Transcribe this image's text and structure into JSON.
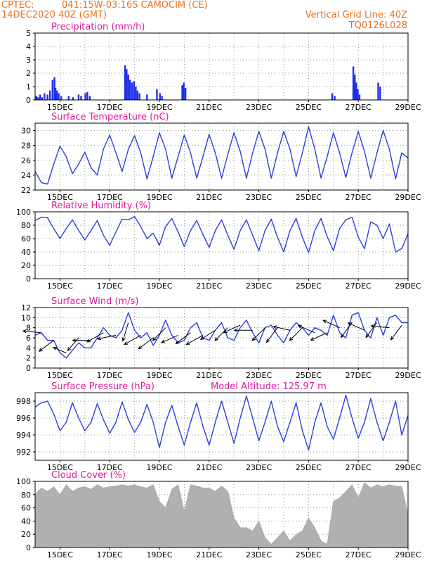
{
  "header": {
    "source": "CPTEC:",
    "location": "041:15W-03:16S   CAMOCIM (CE)",
    "run": "14DEC2020 40Z (GMT)",
    "grid_line": "Vertical Grid Line: 40Z",
    "code": "TQ0126L028"
  },
  "date_labels": [
    "15DEC",
    "17DEC",
    "19DEC",
    "21DEC",
    "23DEC",
    "25DEC",
    "27DEC",
    "29DEC"
  ],
  "colors": {
    "header": "#e8701a",
    "panel_title": "#e0189c",
    "line": "#2b3fe0",
    "bar": "#1f2ee8",
    "cloud": "#b0b0b0",
    "grid": "#9a9a9a"
  },
  "chart_data": [
    {
      "type": "bar",
      "title": "Precipitation (mm/h)",
      "unit": "mm/h",
      "ylim": [
        0,
        5
      ],
      "yticks": [
        0,
        1,
        2,
        3,
        4,
        5
      ],
      "xlim": [
        0,
        15
      ],
      "x": [
        0.05,
        0.12,
        0.2,
        0.28,
        0.38,
        0.5,
        0.6,
        0.7,
        0.78,
        0.82,
        0.88,
        0.95,
        1.05,
        1.35,
        1.52,
        1.75,
        1.85,
        2.02,
        2.1,
        2.2,
        3.62,
        3.68,
        3.75,
        3.82,
        3.9,
        3.98,
        4.05,
        4.12,
        4.2,
        4.5,
        4.9,
        5.02,
        5.1,
        5.92,
        5.98,
        6.05,
        11.95,
        12.05,
        12.8,
        12.86,
        12.92,
        12.98,
        13.05,
        13.8,
        13.88
      ],
      "values": [
        0.3,
        0.2,
        0.4,
        0.2,
        0.5,
        0.4,
        0.7,
        1.5,
        1.7,
        0.9,
        0.7,
        0.5,
        0.3,
        0.3,
        0.2,
        0.4,
        0.3,
        0.5,
        0.6,
        0.3,
        2.6,
        2.3,
        1.9,
        1.5,
        1.3,
        1.4,
        1.0,
        0.7,
        0.5,
        0.4,
        0.8,
        0.5,
        0.3,
        1.1,
        1.3,
        0.9,
        0.5,
        0.3,
        2.5,
        1.9,
        1.3,
        0.8,
        0.4,
        1.3,
        1.0
      ]
    },
    {
      "type": "line",
      "title": "Surface Temperature (nC)",
      "unit": "nC",
      "ylim": [
        22,
        31
      ],
      "yticks": [
        22,
        24,
        26,
        28,
        30
      ],
      "xlim": [
        0,
        15
      ],
      "x": [
        0.0,
        0.25,
        0.5,
        0.75,
        1.0,
        1.25,
        1.5,
        1.75,
        2.0,
        2.25,
        2.5,
        2.75,
        3.0,
        3.25,
        3.5,
        3.75,
        4.0,
        4.25,
        4.5,
        4.75,
        5.0,
        5.25,
        5.5,
        5.75,
        6.0,
        6.25,
        6.5,
        6.75,
        7.0,
        7.25,
        7.5,
        7.75,
        8.0,
        8.25,
        8.5,
        8.75,
        9.0,
        9.25,
        9.5,
        9.75,
        10.0,
        10.25,
        10.5,
        10.75,
        11.0,
        11.25,
        11.5,
        11.75,
        12.0,
        12.25,
        12.5,
        12.75,
        13.0,
        13.25,
        13.5,
        13.75,
        14.0,
        14.25,
        14.5,
        14.75,
        15.0
      ],
      "values": [
        24.5,
        23.0,
        22.8,
        25.5,
        27.9,
        26.5,
        24.2,
        25.5,
        27.1,
        25.0,
        24.0,
        27.5,
        29.4,
        27.0,
        24.5,
        27.5,
        29.3,
        27.0,
        23.5,
        26.5,
        29.7,
        27.5,
        23.6,
        26.5,
        29.4,
        27.0,
        23.6,
        26.5,
        29.5,
        27.0,
        23.6,
        26.8,
        29.7,
        27.2,
        23.6,
        27.0,
        29.9,
        27.5,
        23.6,
        27.0,
        29.9,
        27.5,
        23.8,
        27.0,
        30.5,
        27.5,
        23.6,
        26.5,
        29.7,
        27.0,
        23.7,
        27.0,
        29.9,
        27.2,
        23.6,
        27.0,
        30.0,
        27.5,
        23.5,
        27.0,
        26.3
      ]
    },
    {
      "type": "line",
      "title": "Relative Humidity (%)",
      "unit": "%",
      "ylim": [
        0,
        100
      ],
      "yticks": [
        0,
        20,
        40,
        60,
        80,
        100
      ],
      "xlim": [
        0,
        15
      ],
      "x": [
        0.0,
        0.25,
        0.5,
        0.75,
        1.0,
        1.25,
        1.5,
        1.75,
        2.0,
        2.25,
        2.5,
        2.75,
        3.0,
        3.25,
        3.5,
        3.75,
        4.0,
        4.25,
        4.5,
        4.75,
        5.0,
        5.25,
        5.5,
        5.75,
        6.0,
        6.25,
        6.5,
        6.75,
        7.0,
        7.25,
        7.5,
        7.75,
        8.0,
        8.25,
        8.5,
        8.75,
        9.0,
        9.25,
        9.5,
        9.75,
        10.0,
        10.25,
        10.5,
        10.75,
        11.0,
        11.25,
        11.5,
        11.75,
        12.0,
        12.25,
        12.5,
        12.75,
        13.0,
        13.25,
        13.5,
        13.75,
        14.0,
        14.25,
        14.5,
        14.75,
        15.0
      ],
      "values": [
        87.0,
        92.0,
        91.0,
        75.0,
        60.0,
        75.0,
        88.0,
        72.0,
        58.0,
        72.0,
        87.0,
        65.0,
        50.0,
        70.0,
        89.0,
        88.0,
        93.0,
        78.0,
        60.0,
        68.0,
        50.0,
        78.0,
        90.0,
        70.0,
        48.0,
        72.0,
        87.0,
        66.0,
        47.0,
        72.0,
        88.0,
        65.0,
        44.0,
        72.0,
        88.0,
        65.0,
        42.0,
        72.0,
        89.0,
        62.0,
        40.0,
        72.0,
        90.0,
        62.0,
        39.0,
        72.0,
        90.0,
        63.0,
        42.0,
        75.0,
        88.0,
        92.0,
        62.0,
        45.0,
        85.0,
        80.0,
        60.0,
        82.0,
        40.0,
        45.0,
        67.0
      ]
    },
    {
      "type": "line",
      "title": "Surface Wind (m/s)",
      "unit": "m/s",
      "ylim": [
        0,
        12
      ],
      "yticks": [
        0,
        2,
        4,
        6,
        8,
        10,
        12
      ],
      "xlim": [
        0,
        15
      ],
      "x": [
        0.0,
        0.25,
        0.5,
        0.75,
        1.0,
        1.25,
        1.5,
        1.75,
        2.0,
        2.25,
        2.5,
        2.75,
        3.0,
        3.25,
        3.5,
        3.75,
        4.0,
        4.25,
        4.5,
        4.75,
        5.0,
        5.25,
        5.5,
        5.75,
        6.0,
        6.25,
        6.5,
        6.75,
        7.0,
        7.25,
        7.5,
        7.75,
        8.0,
        8.25,
        8.5,
        8.75,
        9.0,
        9.25,
        9.5,
        9.75,
        10.0,
        10.25,
        10.5,
        10.75,
        11.0,
        11.25,
        11.5,
        11.75,
        12.0,
        12.25,
        12.5,
        12.75,
        13.0,
        13.25,
        13.5,
        13.75,
        14.0,
        14.25,
        14.5,
        14.75,
        15.0
      ],
      "values": [
        6.5,
        7.0,
        5.5,
        5.5,
        3.0,
        2.0,
        3.5,
        5.0,
        4.0,
        4.0,
        6.0,
        8.0,
        6.5,
        6.0,
        7.5,
        11.0,
        7.5,
        6.0,
        7.0,
        4.5,
        6.5,
        9.5,
        6.5,
        5.0,
        5.5,
        8.0,
        9.0,
        6.0,
        5.5,
        7.5,
        9.0,
        6.0,
        5.5,
        8.0,
        9.5,
        7.0,
        5.0,
        8.0,
        8.5,
        6.5,
        5.0,
        7.5,
        9.0,
        8.0,
        6.5,
        8.0,
        7.5,
        6.5,
        10.5,
        7.0,
        6.0,
        10.5,
        11.0,
        7.5,
        6.0,
        10.0,
        6.5,
        10.0,
        10.5,
        9.0,
        9.0
      ],
      "arrows": [
        {
          "x": 0.25,
          "speed": 7.0,
          "dx": -1.0,
          "dy": 0.1
        },
        {
          "x": 0.75,
          "speed": 5.5,
          "dx": -0.8,
          "dy": -0.6
        },
        {
          "x": 1.25,
          "speed": 3.0,
          "dx": -0.7,
          "dy": 0.3
        },
        {
          "x": 1.75,
          "speed": 6.0,
          "dx": -0.6,
          "dy": -0.7
        },
        {
          "x": 2.25,
          "speed": 5.5,
          "dx": -1.0,
          "dy": 0.0
        },
        {
          "x": 2.75,
          "speed": 7.0,
          "dx": -0.9,
          "dy": -0.5
        },
        {
          "x": 3.25,
          "speed": 6.5,
          "dx": -1.0,
          "dy": -0.2
        },
        {
          "x": 3.75,
          "speed": 9.0,
          "dx": -0.3,
          "dy": -1.0
        },
        {
          "x": 4.25,
          "speed": 6.5,
          "dx": -0.9,
          "dy": -0.5
        },
        {
          "x": 4.75,
          "speed": 6.0,
          "dx": -0.8,
          "dy": -0.6
        },
        {
          "x": 5.25,
          "speed": 8.0,
          "dx": -0.7,
          "dy": -0.7
        },
        {
          "x": 5.75,
          "speed": 6.5,
          "dx": -0.9,
          "dy": -0.4
        },
        {
          "x": 6.25,
          "speed": 7.0,
          "dx": -0.8,
          "dy": -0.6
        },
        {
          "x": 6.75,
          "speed": 6.5,
          "dx": -0.9,
          "dy": -0.5
        },
        {
          "x": 7.25,
          "speed": 7.5,
          "dx": -0.8,
          "dy": -0.5
        },
        {
          "x": 7.75,
          "speed": 8.0,
          "dx": -0.7,
          "dy": -0.7
        },
        {
          "x": 8.25,
          "speed": 8.5,
          "dx": -0.9,
          "dy": -0.4
        },
        {
          "x": 8.75,
          "speed": 7.5,
          "dx": -1.0,
          "dy": 0.0
        },
        {
          "x": 9.25,
          "speed": 8.0,
          "dx": -0.7,
          "dy": -0.7
        },
        {
          "x": 9.75,
          "speed": 8.0,
          "dx": -0.6,
          "dy": -0.8
        },
        {
          "x": 10.25,
          "speed": 7.5,
          "dx": -0.9,
          "dy": 0.2
        },
        {
          "x": 10.75,
          "speed": 8.0,
          "dx": -0.7,
          "dy": -0.7
        },
        {
          "x": 11.25,
          "speed": 7.0,
          "dx": -0.9,
          "dy": 0.4
        },
        {
          "x": 11.75,
          "speed": 7.0,
          "dx": -0.9,
          "dy": -0.4
        },
        {
          "x": 12.25,
          "speed": 8.0,
          "dx": -0.9,
          "dy": 0.4
        },
        {
          "x": 12.75,
          "speed": 9.0,
          "dx": -0.6,
          "dy": -0.8
        },
        {
          "x": 13.25,
          "speed": 7.5,
          "dx": -0.9,
          "dy": 0.4
        },
        {
          "x": 13.75,
          "speed": 9.0,
          "dx": -0.6,
          "dy": -0.8
        },
        {
          "x": 14.25,
          "speed": 8.0,
          "dx": -1.0,
          "dy": 0.1
        },
        {
          "x": 14.75,
          "speed": 8.5,
          "dx": -0.6,
          "dy": -0.8
        }
      ]
    },
    {
      "type": "line",
      "title": "Surface Pressure (hPa)",
      "subtitle": "Model Altitude: 125.97 m",
      "unit": "hPa",
      "ylim": [
        991,
        999
      ],
      "yticks": [
        992,
        994,
        996,
        998
      ],
      "xlim": [
        0,
        15
      ],
      "x": [
        0.0,
        0.25,
        0.5,
        0.75,
        1.0,
        1.25,
        1.5,
        1.75,
        2.0,
        2.25,
        2.5,
        2.75,
        3.0,
        3.25,
        3.5,
        3.75,
        4.0,
        4.25,
        4.5,
        4.75,
        5.0,
        5.25,
        5.5,
        5.75,
        6.0,
        6.25,
        6.5,
        6.75,
        7.0,
        7.25,
        7.5,
        7.75,
        8.0,
        8.25,
        8.5,
        8.75,
        9.0,
        9.25,
        9.5,
        9.75,
        10.0,
        10.25,
        10.5,
        10.75,
        11.0,
        11.25,
        11.5,
        11.75,
        12.0,
        12.25,
        12.5,
        12.75,
        13.0,
        13.25,
        13.5,
        13.75,
        14.0,
        14.25,
        14.5,
        14.75,
        15.0
      ],
      "values": [
        997.3,
        997.8,
        998.0,
        996.5,
        994.5,
        995.5,
        997.8,
        996.0,
        994.5,
        995.5,
        997.7,
        995.8,
        994.2,
        995.5,
        997.9,
        995.8,
        994.3,
        995.5,
        997.6,
        995.5,
        992.5,
        995.5,
        997.5,
        995.0,
        992.8,
        995.5,
        997.8,
        995.0,
        992.8,
        995.5,
        998.0,
        995.5,
        993.0,
        996.0,
        998.6,
        996.0,
        993.3,
        995.5,
        998.0,
        995.0,
        993.2,
        995.5,
        997.8,
        994.5,
        992.2,
        995.5,
        997.8,
        995.0,
        993.5,
        996.0,
        998.7,
        996.0,
        993.6,
        995.5,
        998.3,
        995.5,
        993.3,
        995.5,
        998.0,
        994.0,
        996.3
      ]
    },
    {
      "type": "area",
      "title": "Cloud Cover (%)",
      "unit": "%",
      "ylim": [
        0,
        100
      ],
      "yticks": [
        0,
        20,
        40,
        60,
        80,
        100
      ],
      "xlim": [
        0,
        15
      ],
      "x": [
        0.0,
        0.25,
        0.5,
        0.75,
        1.0,
        1.25,
        1.5,
        1.75,
        2.0,
        2.25,
        2.5,
        2.75,
        3.0,
        3.25,
        3.5,
        3.75,
        4.0,
        4.25,
        4.5,
        4.75,
        5.0,
        5.25,
        5.5,
        5.75,
        6.0,
        6.25,
        6.5,
        6.75,
        7.0,
        7.25,
        7.5,
        7.75,
        8.0,
        8.25,
        8.5,
        8.75,
        9.0,
        9.25,
        9.5,
        9.75,
        10.0,
        10.25,
        10.5,
        10.75,
        11.0,
        11.25,
        11.5,
        11.75,
        12.0,
        12.25,
        12.5,
        12.75,
        13.0,
        13.25,
        13.5,
        13.75,
        14.0,
        14.25,
        14.5,
        14.75,
        15.0
      ],
      "values": [
        80,
        90,
        85,
        92,
        80,
        95,
        85,
        90,
        92,
        88,
        95,
        90,
        92,
        93,
        95,
        93,
        95,
        92,
        90,
        95,
        70,
        60,
        88,
        95,
        55,
        95,
        93,
        90,
        90,
        85,
        93,
        85,
        45,
        30,
        30,
        25,
        40,
        15,
        5,
        15,
        25,
        10,
        20,
        25,
        45,
        30,
        10,
        5,
        70,
        75,
        85,
        95,
        75,
        98,
        90,
        95,
        92,
        95,
        93,
        92,
        50
      ]
    }
  ]
}
